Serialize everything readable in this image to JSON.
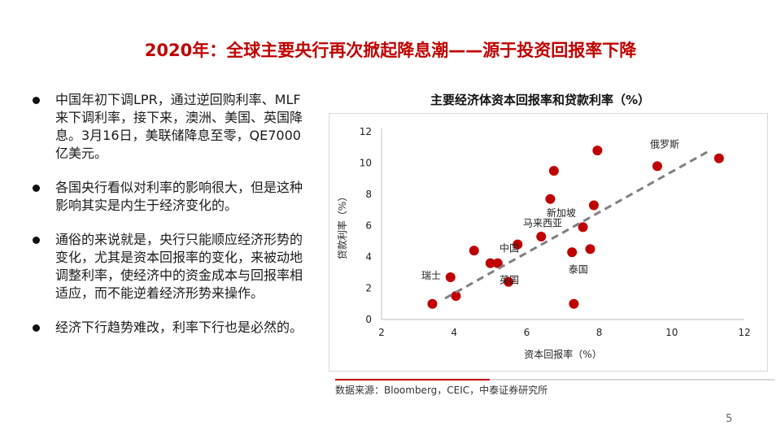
{
  "slide": {
    "title": "2020年：全球主要央行再次掀起降息潮——源于投资回报率下降",
    "page_number": "5"
  },
  "bullets": [
    "中国年初下调LPR，通过逆回购利率、MLF来下调利率，接下来，澳洲、美国、英国降息。3月16日，美联储降息至零，QE7000亿美元。",
    "各国央行看似对利率的影响很大，但是这种影响其实是内生于经济变化的。",
    "通俗的来说就是，央行只能顺应经济形势的变化，尤其是资本回报率的变化，来被动地调整利率，使经济中的资金成本与回报率相适应，而不能逆着经济形势来操作。",
    "经济下行趋势难改，利率下行也是必然的。"
  ],
  "source": "数据来源：Bloomberg，CEIC，中泰证券研究所",
  "colors": {
    "title": "#c00000",
    "marker": "#c00000",
    "trend": "#808080",
    "source_bar": "#c00000",
    "axis": "#bfbfbf"
  },
  "chart_data": {
    "type": "scatter",
    "title": "主要经济体资本回报率和贷款利率（%）",
    "xlabel": "资本回报率（%）",
    "ylabel": "贷款利率（%）",
    "xlim": [
      2,
      12
    ],
    "ylim": [
      0,
      12
    ],
    "xticks": [
      2,
      4,
      6,
      8,
      10,
      12
    ],
    "yticks": [
      0,
      2,
      4,
      6,
      8,
      10,
      12
    ],
    "grid": false,
    "points": [
      {
        "x": 3.4,
        "y": 1.0
      },
      {
        "x": 3.9,
        "y": 2.7
      },
      {
        "x": 4.05,
        "y": 1.5
      },
      {
        "x": 4.55,
        "y": 4.4
      },
      {
        "x": 5.0,
        "y": 3.6
      },
      {
        "x": 5.2,
        "y": 3.6
      },
      {
        "x": 5.5,
        "y": 2.4
      },
      {
        "x": 5.75,
        "y": 4.8
      },
      {
        "x": 6.4,
        "y": 5.3
      },
      {
        "x": 6.65,
        "y": 7.7
      },
      {
        "x": 6.75,
        "y": 9.5
      },
      {
        "x": 7.25,
        "y": 4.3
      },
      {
        "x": 7.3,
        "y": 1.0
      },
      {
        "x": 7.55,
        "y": 5.9
      },
      {
        "x": 7.75,
        "y": 4.5
      },
      {
        "x": 7.85,
        "y": 7.3
      },
      {
        "x": 7.95,
        "y": 10.8
      },
      {
        "x": 9.6,
        "y": 9.8
      },
      {
        "x": 11.3,
        "y": 10.3
      }
    ],
    "trendline": {
      "style": "dashed",
      "from": [
        3.75,
        1.35
      ],
      "to": [
        11.05,
        10.8
      ]
    },
    "annotations": [
      {
        "text": "瑞士",
        "x": 3.1,
        "y": 2.6
      },
      {
        "text": "中国",
        "x": 5.25,
        "y": 4.35
      },
      {
        "text": "英国",
        "x": 5.25,
        "y": 2.3
      },
      {
        "text": "马来西亚",
        "x": 5.9,
        "y": 5.95
      },
      {
        "text": "新加坡",
        "x": 6.55,
        "y": 6.6
      },
      {
        "text": "泰国",
        "x": 7.15,
        "y": 3.0
      },
      {
        "text": "俄罗斯",
        "x": 9.4,
        "y": 11.0
      }
    ]
  }
}
